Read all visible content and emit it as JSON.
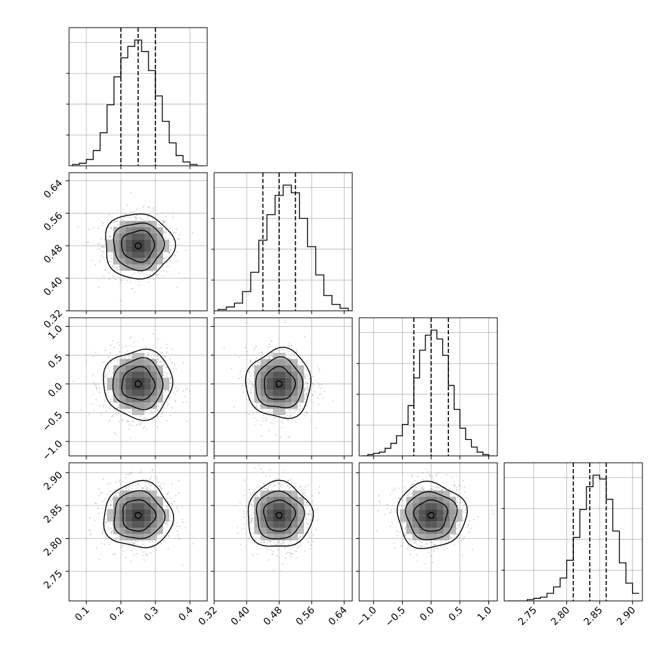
{
  "chart_data": {
    "type": "corner",
    "parameters": [
      {
        "range": [
          0.05,
          0.45
        ],
        "ticks": [
          0.1,
          0.2,
          0.3,
          0.4
        ],
        "tick_labels": [
          "0.1",
          "0.2",
          "0.3",
          "0.4"
        ],
        "quantiles": [
          0.2,
          0.25,
          0.3
        ],
        "mean": 0.25,
        "sd": 0.05
      },
      {
        "range": [
          0.32,
          0.66
        ],
        "ticks": [
          0.32,
          0.4,
          0.48,
          0.56,
          0.64
        ],
        "tick_labels": [
          "0.32",
          "0.40",
          "0.48",
          "0.56",
          "0.64"
        ],
        "quantiles": [
          0.44,
          0.48,
          0.52
        ],
        "mean": 0.48,
        "sd": 0.04
      },
      {
        "range": [
          -1.25,
          1.15
        ],
        "ticks": [
          -1.0,
          -0.5,
          0.0,
          0.5,
          1.0
        ],
        "tick_labels": [
          "−1.0",
          "−0.5",
          "0.0",
          "0.5",
          "1.0"
        ],
        "quantiles": [
          -0.3,
          0.0,
          0.3
        ],
        "mean": 0.0,
        "sd": 0.3
      },
      {
        "range": [
          2.705,
          2.915
        ],
        "ticks": [
          2.75,
          2.8,
          2.85,
          2.9
        ],
        "tick_labels": [
          "2.75",
          "2.80",
          "2.85",
          "2.90"
        ],
        "quantiles": [
          2.81,
          2.835,
          2.86
        ],
        "mean": 2.835,
        "sd": 0.025
      }
    ],
    "histograms": [
      {
        "bins": [
          0.06,
          0.08,
          0.1,
          0.12,
          0.14,
          0.16,
          0.18,
          0.2,
          0.22,
          0.24,
          0.26,
          0.28,
          0.3,
          0.32,
          0.34,
          0.36,
          0.38,
          0.4,
          0.42
        ],
        "counts": [
          1,
          2,
          5,
          12,
          26,
          48,
          70,
          85,
          94,
          99,
          90,
          75,
          55,
          35,
          18,
          8,
          3,
          1,
          0
        ]
      },
      {
        "bins": [
          0.33,
          0.35,
          0.37,
          0.39,
          0.41,
          0.43,
          0.45,
          0.47,
          0.49,
          0.51,
          0.53,
          0.55,
          0.57,
          0.59,
          0.61,
          0.63,
          0.65
        ],
        "counts": [
          1,
          3,
          6,
          15,
          30,
          55,
          75,
          90,
          98,
          92,
          72,
          50,
          28,
          12,
          5,
          2,
          0
        ]
      },
      {
        "bins": [
          -1.2,
          -1.1,
          -1.0,
          -0.9,
          -0.8,
          -0.7,
          -0.6,
          -0.5,
          -0.4,
          -0.3,
          -0.2,
          -0.1,
          0.0,
          0.1,
          0.2,
          0.3,
          0.4,
          0.5,
          0.6,
          0.7,
          0.8,
          0.9,
          1.0,
          1.1
        ],
        "counts": [
          0,
          1,
          2,
          3,
          6,
          10,
          16,
          25,
          40,
          62,
          84,
          96,
          100,
          93,
          80,
          56,
          37,
          22,
          13,
          7,
          3,
          1,
          0
        ]
      },
      {
        "bins": [
          2.71,
          2.72,
          2.73,
          2.74,
          2.75,
          2.76,
          2.77,
          2.78,
          2.79,
          2.8,
          2.81,
          2.82,
          2.83,
          2.84,
          2.85,
          2.86,
          2.87,
          2.88,
          2.89,
          2.9,
          2.91
        ],
        "counts": [
          0,
          0,
          0,
          1,
          2,
          3,
          6,
          11,
          18,
          32,
          50,
          72,
          90,
          99,
          96,
          80,
          55,
          30,
          14,
          6
        ]
      }
    ],
    "grid": true,
    "axis_labels": []
  }
}
